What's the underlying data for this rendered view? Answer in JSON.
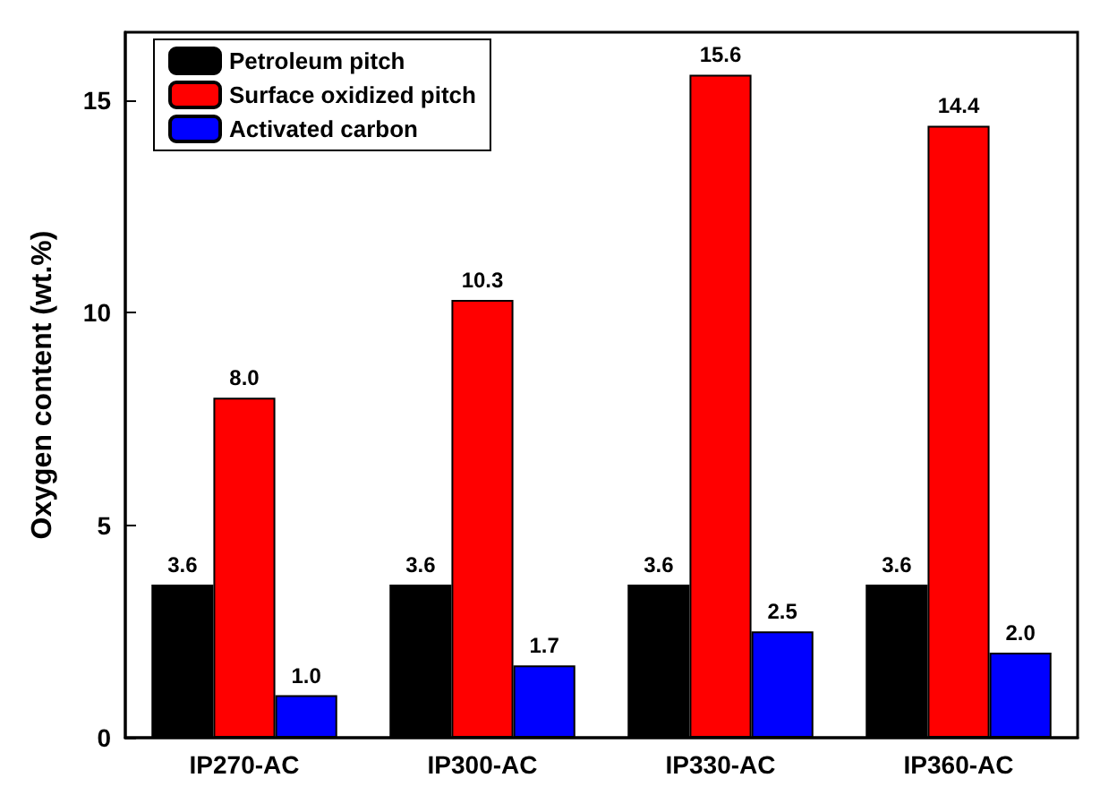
{
  "chart_data": {
    "type": "bar",
    "ylabel": "Oxygen content (wt.%)",
    "categories": [
      "IP270-AC",
      "IP300-AC",
      "IP330-AC",
      "IP360-AC"
    ],
    "series": [
      {
        "name": "Petroleum pitch",
        "color": "#000000",
        "values": [
          3.6,
          3.6,
          3.6,
          3.6
        ],
        "value_labels": [
          "3.6",
          "3.6",
          "3.6",
          "3.6"
        ]
      },
      {
        "name": "Surface oxidized pitch",
        "color": "#ff0000",
        "values": [
          8,
          10.3,
          15.6,
          14.4
        ],
        "value_labels": [
          "8.0",
          "10.3",
          "15.6",
          "14.4"
        ]
      },
      {
        "name": "Activated carbon",
        "color": "#0000ff",
        "values": [
          1,
          1.7,
          2.5,
          2
        ],
        "value_labels": [
          "1.0",
          "1.7",
          "2.5",
          "2.0"
        ]
      }
    ],
    "ylim": [
      0,
      16.6
    ],
    "yticks": [
      0,
      5,
      10,
      15
    ],
    "legend": "top left",
    "grid": false
  }
}
